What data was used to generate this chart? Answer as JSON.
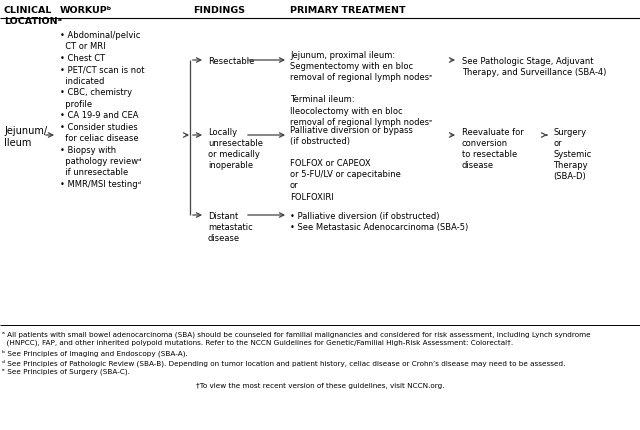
{
  "clinical_location": "Jejunum/\nIleum",
  "workup_bullets": "• Abdominal/pelvic\n  CT or MRI\n• Chest CT\n• PET/CT scan is not\n  indicated\n• CBC, chemistry\n  profile\n• CA 19-9 and CEA\n• Consider studies\n  for celiac disease\n• Biopsy with\n  pathology reviewᵈ\n  if unresectable\n• MMR/MSI testingᵈ",
  "finding_resectable": "Resectable",
  "finding_locally": "Locally\nunresectable\nor medically\ninoperable",
  "finding_distant": "Distant\nmetastatic\ndisease",
  "tx_resectable": "Jejunum, proximal ileum:\nSegmentectomy with en bloc\nremoval of regional lymph nodesᵉ\n\nTerminal ileum:\nIleocolectomy with en bloc\nremoval of regional lymph nodesᵉ",
  "tx_locally": "Palliative diversion or bypass\n(if obstructed)\n\nFOLFOX or CAPEOX\nor 5-FU/LV or capecitabine\nor\nFOLFOXIRI",
  "tx_distant": "• Palliative diversion (if obstructed)\n• See Metastasic Adenocarcinoma (SBA-5)",
  "outcome_resectable": "See Pathologic Stage, Adjuvant\nTherapy, and Surveillance (SBA-4)",
  "outcome_locally_1": "Reevaluate for\nconversion\nto resectable\ndisease",
  "outcome_locally_2": "Surgery\nor\nSystemic\nTherapy\n(SBA-D)",
  "header_clinical": "CLINICAL\nLOCATIONᵃ",
  "header_workup": "WORKUPᵇ",
  "header_findings": "FINDINGS",
  "header_treatment": "PRIMARY TREATMENT",
  "footnote_a": "ᵃ All patients with small bowel adenocarcinoma (SBA) should be counseled for familial malignancies and considered for risk assessment, including Lynch syndrome\n  (HNPCC), FAP, and other inherited polypoid mutations. Refer to the NCCN Guidelines for Genetic/Familial High-Risk Assessment: Colorectal†.",
  "footnote_b": "ᵇ See Principles of Imaging and Endoscopy (SBA-A).",
  "footnote_d": "ᵈ See Principles of Pathologic Review (SBA-B). Depending on tumor location and patient history, celiac disease or Crohn’s disease may need to be assessed.",
  "footnote_e": "ᵉ See Principles of Surgery (SBA-C).",
  "dagger": "†To view the most recent version of these guidelines, visit NCCN.org.",
  "arrow_color": "#444444",
  "line_color": "#444444",
  "text_color": "#000000",
  "bg_color": "#ffffff",
  "header_fs": 6.8,
  "body_fs": 6.0,
  "footnote_fs": 5.2
}
